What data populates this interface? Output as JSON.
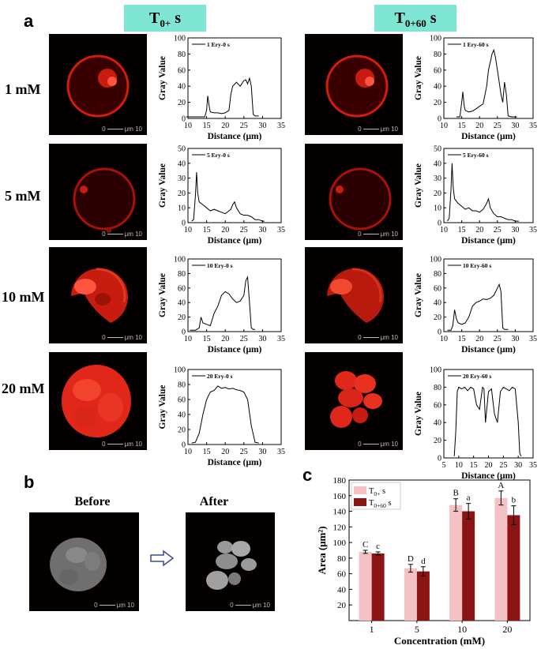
{
  "figure": {
    "panel_a": "a",
    "panel_b": "b",
    "panel_c": "c",
    "header_t0": {
      "main": "T",
      "sub": "0+",
      "unit": "s"
    },
    "header_t60": {
      "main": "T",
      "sub": "0+60",
      "unit": "s"
    },
    "concentrations": [
      "1 mM",
      "5 mM",
      "10 mM",
      "20 mM"
    ],
    "scale_label": {
      "zero": "0",
      "unit": "μm",
      "ten": "10"
    },
    "before_label": "Before",
    "after_label": "After",
    "arrow_icon": "hollow-right-arrow-icon"
  },
  "chart_data": [
    {
      "type": "line",
      "legend": "1 Ery-0 s",
      "xlabel": "Distance (μm)",
      "ylabel": "Gray Value",
      "xlim": [
        10,
        35
      ],
      "ylim": [
        0,
        100
      ],
      "xticks": [
        10,
        15,
        20,
        25,
        30,
        35
      ],
      "yticks": [
        0,
        20,
        40,
        60,
        80,
        100
      ],
      "x": [
        9.5,
        14.5,
        15.0,
        15.3,
        15.7,
        16.0,
        17.0,
        18.0,
        19.0,
        20.0,
        21.0,
        21.5,
        22.0,
        23.0,
        24.0,
        25.0,
        25.5,
        26.0,
        26.5,
        27.0,
        27.5,
        28.0,
        28.5,
        29.0
      ],
      "y": [
        2,
        2,
        10,
        28,
        15,
        8,
        7,
        7,
        6,
        7,
        10,
        30,
        40,
        45,
        40,
        47,
        48,
        43,
        50,
        40,
        5,
        3,
        3,
        3
      ]
    },
    {
      "type": "line",
      "legend": "1 Ery-60 s",
      "xlabel": "Distance (μm)",
      "ylabel": "Gray Value",
      "xlim": [
        10,
        35
      ],
      "ylim": [
        0,
        100
      ],
      "xticks": [
        10,
        15,
        20,
        25,
        30,
        35
      ],
      "yticks": [
        0,
        20,
        40,
        60,
        80,
        100
      ],
      "x": [
        13.5,
        14.5,
        15.0,
        15.3,
        15.7,
        16.0,
        17.0,
        18.0,
        19.0,
        20.0,
        21.0,
        22.0,
        22.5,
        23.0,
        23.5,
        24.0,
        24.5,
        25.0,
        25.5,
        26.0,
        26.5,
        27.0,
        27.5,
        28.0,
        29.0,
        30.5
      ],
      "y": [
        2,
        2,
        20,
        33,
        15,
        10,
        8,
        9,
        12,
        15,
        18,
        40,
        60,
        70,
        80,
        85,
        75,
        60,
        45,
        30,
        20,
        45,
        30,
        3,
        2,
        2
      ]
    },
    {
      "type": "line",
      "legend": "5 Ery-0 s",
      "xlabel": "Distance (μm)",
      "ylabel": "Gray Value",
      "xlim": [
        10,
        35
      ],
      "ylim": [
        0,
        50
      ],
      "xticks": [
        10,
        15,
        20,
        25,
        30,
        35
      ],
      "yticks": [
        0,
        10,
        20,
        30,
        40,
        50
      ],
      "x": [
        11.0,
        11.5,
        12.0,
        12.3,
        12.6,
        13.0,
        14.0,
        15.0,
        16.0,
        17.0,
        18.0,
        19.0,
        20.0,
        21.0,
        21.5,
        22.0,
        22.5,
        23.0,
        24.0,
        25.0,
        26.0,
        27.0,
        28.0,
        29.0,
        30.0,
        30.5
      ],
      "y": [
        1,
        2,
        18,
        34,
        20,
        14,
        12,
        10,
        8,
        9,
        8,
        7,
        6,
        8,
        9,
        12,
        14,
        10,
        6,
        5,
        5,
        4,
        2,
        2,
        1,
        1
      ]
    },
    {
      "type": "line",
      "legend": "5 Ery-60 s",
      "xlabel": "Distance (μm)",
      "ylabel": "Gray Value",
      "xlim": [
        10,
        35
      ],
      "ylim": [
        0,
        50
      ],
      "xticks": [
        10,
        15,
        20,
        25,
        30,
        35
      ],
      "yticks": [
        0,
        10,
        20,
        30,
        40,
        50
      ],
      "x": [
        11.0,
        11.5,
        12.0,
        12.3,
        12.6,
        13.0,
        14.0,
        15.0,
        16.0,
        17.0,
        18.0,
        19.0,
        20.0,
        21.0,
        22.0,
        22.5,
        23.0,
        24.0,
        25.0,
        26.0,
        27.0,
        28.0,
        29.0,
        30.0,
        31.0
      ],
      "y": [
        1,
        3,
        22,
        40,
        24,
        16,
        13,
        11,
        9,
        10,
        8,
        8,
        7,
        9,
        13,
        16,
        10,
        6,
        4,
        4,
        3,
        2,
        2,
        1,
        1
      ]
    },
    {
      "type": "line",
      "legend": "10 Ery-0 s",
      "xlabel": "Distance (μm)",
      "ylabel": "Gray Value",
      "xlim": [
        10,
        35
      ],
      "ylim": [
        0,
        100
      ],
      "xticks": [
        10,
        15,
        20,
        25,
        30,
        35
      ],
      "yticks": [
        0,
        20,
        40,
        60,
        80,
        100
      ],
      "x": [
        10.5,
        12.0,
        13.0,
        13.5,
        14.0,
        15.0,
        16.0,
        17.0,
        18.0,
        19.0,
        20.0,
        21.0,
        22.0,
        23.0,
        24.0,
        25.0,
        25.5,
        26.0,
        26.5,
        27.0,
        27.5,
        28.0
      ],
      "y": [
        2,
        2,
        5,
        20,
        12,
        10,
        8,
        25,
        35,
        50,
        55,
        52,
        45,
        40,
        42,
        50,
        70,
        75,
        40,
        5,
        3,
        3
      ]
    },
    {
      "type": "line",
      "legend": "10 Ery-60 s",
      "xlabel": "Distance (μm)",
      "ylabel": "Gray Value",
      "xlim": [
        10,
        35
      ],
      "ylim": [
        0,
        100
      ],
      "xticks": [
        10,
        15,
        20,
        25,
        30,
        35
      ],
      "yticks": [
        0,
        20,
        40,
        60,
        80,
        100
      ],
      "x": [
        11.0,
        12.0,
        12.5,
        13.0,
        13.5,
        14.0,
        15.0,
        16.0,
        17.0,
        18.0,
        19.0,
        20.0,
        21.0,
        22.0,
        23.0,
        24.0,
        25.0,
        25.5,
        26.0,
        26.5,
        27.0,
        28.0
      ],
      "y": [
        2,
        2,
        8,
        30,
        18,
        12,
        10,
        12,
        20,
        35,
        40,
        42,
        45,
        44,
        46,
        50,
        60,
        65,
        55,
        5,
        3,
        3
      ]
    },
    {
      "type": "line",
      "legend": "20 Ery-0 s",
      "xlabel": "Distance (μm)",
      "ylabel": "Gray Value",
      "xlim": [
        10,
        35
      ],
      "ylim": [
        0,
        100
      ],
      "xticks": [
        10,
        15,
        20,
        25,
        30,
        35
      ],
      "yticks": [
        0,
        20,
        40,
        60,
        80,
        100
      ],
      "x": [
        11.0,
        12.0,
        13.0,
        14.0,
        15.0,
        16.0,
        17.0,
        18.0,
        19.0,
        20.0,
        21.0,
        22.0,
        23.0,
        24.0,
        25.0,
        26.0,
        27.0,
        28.0,
        29.0
      ],
      "y": [
        2,
        3,
        15,
        40,
        60,
        70,
        72,
        78,
        75,
        76,
        74,
        75,
        73,
        72,
        70,
        60,
        25,
        3,
        2
      ]
    },
    {
      "type": "line",
      "legend": "20 Ery-60 s",
      "xlabel": "Distance (μm)",
      "ylabel": "Gray Value",
      "xlim": [
        5,
        35
      ],
      "ylim": [
        0,
        100
      ],
      "xticks": [
        5,
        10,
        15,
        20,
        25,
        30,
        35
      ],
      "yticks": [
        0,
        20,
        40,
        60,
        80,
        100
      ],
      "x": [
        8.5,
        9.0,
        9.5,
        10.0,
        11.0,
        12.0,
        13.0,
        14.0,
        15.0,
        16.0,
        17.0,
        18.0,
        18.5,
        19.0,
        20.0,
        21.0,
        22.0,
        23.0,
        24.0,
        25.0,
        26.0,
        27.0,
        28.0,
        29.0,
        30.0,
        30.5,
        31.0
      ],
      "y": [
        2,
        30,
        75,
        80,
        78,
        80,
        76,
        80,
        78,
        60,
        55,
        80,
        78,
        40,
        75,
        78,
        50,
        40,
        75,
        80,
        78,
        76,
        80,
        78,
        40,
        5,
        2
      ]
    },
    {
      "type": "bar",
      "categories": [
        "1",
        "5",
        "10",
        "20"
      ],
      "series": [
        {
          "name": "T0+ s",
          "values": [
            88,
            67,
            148,
            157
          ],
          "errors": [
            2,
            5,
            8,
            9
          ],
          "letters": [
            "C",
            "D",
            "B",
            "A"
          ]
        },
        {
          "name": "T0+60 s",
          "values": [
            86,
            63,
            140,
            135
          ],
          "errors": [
            2,
            6,
            10,
            12
          ],
          "letters": [
            "c",
            "d",
            "a",
            "b"
          ]
        }
      ],
      "xlabel": "Concentration (mM)",
      "ylabel": "Area (μm²)",
      "ylim": [
        0,
        180
      ],
      "yticks": [
        20,
        40,
        60,
        80,
        100,
        120,
        140,
        160,
        180
      ],
      "legend_position": "top-left",
      "colors": [
        "#f4c2c4",
        "#8b1515"
      ]
    }
  ]
}
